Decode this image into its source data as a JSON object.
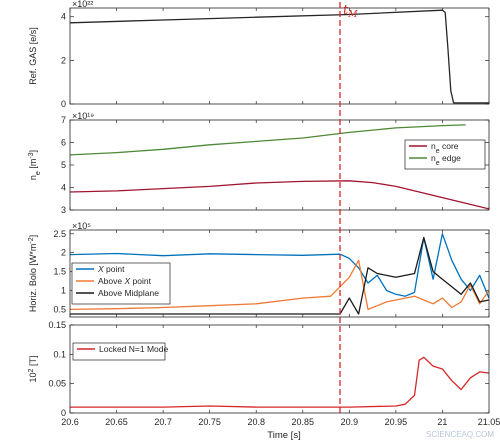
{
  "chart_data": [
    {
      "type": "line",
      "ylabel": "Ref. GAS [e/s]",
      "exponent": "×10²²",
      "xlim": [
        20.6,
        21.05
      ],
      "ylim": [
        0,
        4.4
      ],
      "yticks": [
        0,
        2,
        4
      ],
      "series": [
        {
          "color": "#262626",
          "x": [
            20.6,
            20.7,
            20.8,
            20.9,
            21.0,
            21.003,
            21.006,
            21.009,
            21.012,
            21.05
          ],
          "y": [
            3.72,
            3.85,
            3.98,
            4.1,
            4.3,
            4.2,
            2.5,
            0.6,
            0.05,
            0.05
          ]
        }
      ]
    },
    {
      "type": "line",
      "ylabel": "n_e [m^-3]",
      "exponent": "×10¹⁹",
      "xlim": [
        20.6,
        21.05
      ],
      "ylim": [
        3,
        7
      ],
      "yticks": [
        3,
        4,
        5,
        6,
        7
      ],
      "legend": {
        "placement": "right",
        "entries": [
          "n_e core",
          "n_e edge"
        ]
      },
      "series": [
        {
          "name": "n_e core",
          "color": "#a2142f",
          "x": [
            20.6,
            20.65,
            20.7,
            20.75,
            20.8,
            20.85,
            20.9,
            20.925,
            20.95,
            20.975,
            21.0,
            21.025,
            21.05
          ],
          "y": [
            3.8,
            3.85,
            3.95,
            4.05,
            4.2,
            4.27,
            4.3,
            4.22,
            4.05,
            3.8,
            3.55,
            3.3,
            3.05
          ]
        },
        {
          "name": "n_e edge",
          "color": "#4d8a35",
          "x": [
            20.6,
            20.65,
            20.7,
            20.75,
            20.8,
            20.85,
            20.9,
            20.95,
            21.0,
            21.025
          ],
          "y": [
            5.45,
            5.55,
            5.7,
            5.9,
            6.05,
            6.2,
            6.45,
            6.65,
            6.75,
            6.78
          ]
        }
      ]
    },
    {
      "type": "line",
      "ylabel": "Horiz. Bolo [W*m^-2]",
      "exponent": "×10⁵",
      "xlim": [
        20.6,
        21.05
      ],
      "ylim": [
        0.3,
        2.6
      ],
      "yticks": [
        0.5,
        1,
        1.5,
        2,
        2.5
      ],
      "legend": {
        "placement": "left",
        "entries": [
          "X point",
          "Above X point",
          "Above Midplane"
        ]
      },
      "series": [
        {
          "name": "X point",
          "color": "#0072bd",
          "x": [
            20.6,
            20.65,
            20.7,
            20.75,
            20.8,
            20.85,
            20.89,
            20.9,
            20.91,
            20.92,
            20.93,
            20.94,
            20.95,
            20.96,
            20.97,
            20.98,
            20.99,
            21.0,
            21.01,
            21.02,
            21.03,
            21.04,
            21.05
          ],
          "y": [
            1.95,
            1.98,
            1.92,
            1.97,
            1.95,
            1.93,
            1.96,
            1.85,
            1.6,
            1.2,
            1.4,
            1.0,
            0.9,
            0.85,
            0.95,
            2.4,
            1.3,
            2.5,
            1.8,
            1.3,
            1.0,
            1.4,
            0.8
          ]
        },
        {
          "name": "Above X point",
          "color": "#f07a35",
          "x": [
            20.6,
            20.65,
            20.7,
            20.75,
            20.8,
            20.85,
            20.88,
            20.9,
            20.91,
            20.92,
            20.93,
            20.94,
            20.95,
            20.96,
            20.97,
            20.98,
            20.99,
            21.0,
            21.01,
            21.02,
            21.03,
            21.04,
            21.05
          ],
          "y": [
            0.5,
            0.52,
            0.55,
            0.6,
            0.65,
            0.8,
            0.85,
            1.35,
            1.8,
            0.5,
            0.6,
            0.7,
            0.75,
            0.8,
            0.85,
            0.75,
            0.65,
            0.8,
            0.55,
            0.7,
            1.15,
            0.65,
            1.0
          ]
        },
        {
          "name": "Above Midplane",
          "color": "#1a1a1a",
          "x": [
            20.6,
            20.7,
            20.8,
            20.89,
            20.9,
            20.91,
            20.92,
            20.93,
            20.94,
            20.95,
            20.96,
            20.97,
            20.98,
            20.99,
            21.0,
            21.01,
            21.02,
            21.03,
            21.04,
            21.05
          ],
          "y": [
            0.38,
            0.38,
            0.38,
            0.38,
            0.8,
            0.38,
            1.6,
            1.45,
            1.4,
            1.35,
            1.4,
            1.45,
            2.4,
            1.5,
            1.3,
            1.1,
            0.9,
            1.2,
            0.7,
            0.75
          ]
        }
      ]
    },
    {
      "type": "line",
      "ylabel": "10^2 [T]",
      "xlabel": "Time [s]",
      "xlim": [
        20.6,
        21.05
      ],
      "ylim": [
        0,
        0.15
      ],
      "yticks": [
        0,
        0.05,
        0.1,
        0.15
      ],
      "xticks": [
        20.6,
        20.65,
        20.7,
        20.75,
        20.8,
        20.85,
        20.9,
        20.95,
        21.0,
        21.05
      ],
      "legend": {
        "placement": "left",
        "entries": [
          "Locked N=1 Mode"
        ]
      },
      "series": [
        {
          "name": "Locked N=1 Mode",
          "color": "#d62728",
          "x": [
            20.6,
            20.65,
            20.7,
            20.75,
            20.8,
            20.85,
            20.9,
            20.95,
            20.96,
            20.97,
            20.975,
            20.98,
            20.99,
            21.0,
            21.01,
            21.02,
            21.03,
            21.04,
            21.05
          ],
          "y": [
            0.01,
            0.01,
            0.01,
            0.012,
            0.01,
            0.01,
            0.01,
            0.012,
            0.015,
            0.03,
            0.09,
            0.095,
            0.08,
            0.075,
            0.055,
            0.04,
            0.06,
            0.07,
            0.068
          ]
        }
      ]
    }
  ],
  "marker": {
    "label": "t_M",
    "x": 20.89,
    "color": "#d62728"
  },
  "watermark": "SCIENCEAQ.COM"
}
